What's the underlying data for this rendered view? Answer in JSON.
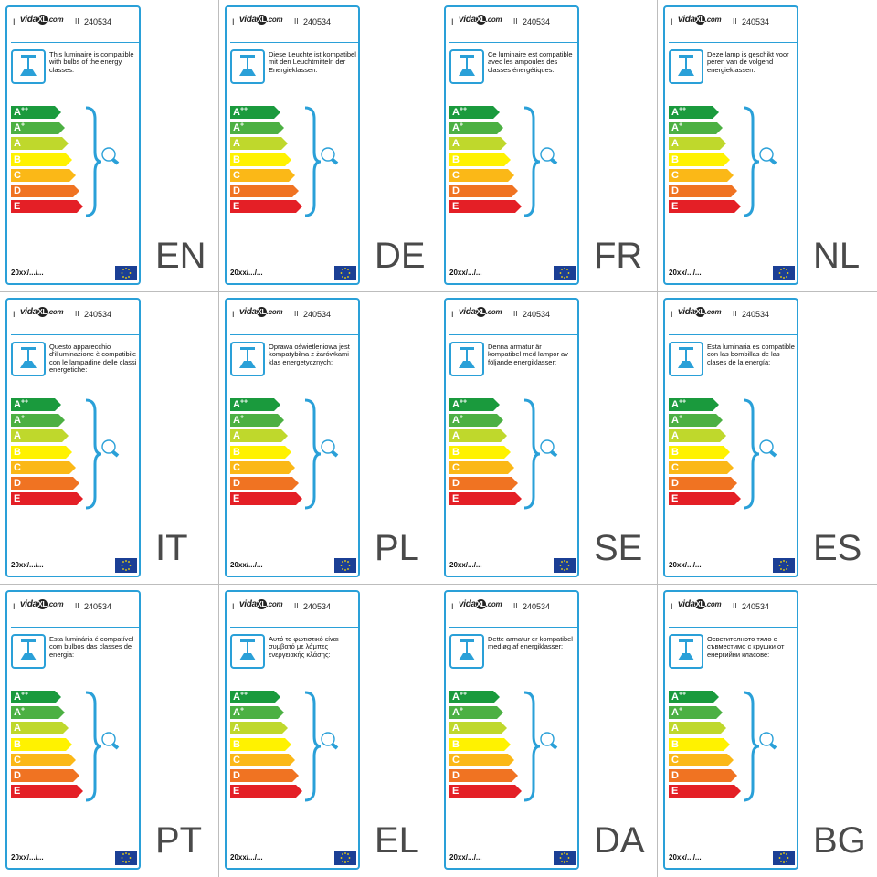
{
  "header": {
    "left_marker": "I",
    "logo_prefix": "vida",
    "logo_x": "XL",
    "logo_suffix": ".com",
    "sep": "II",
    "sku": "240534"
  },
  "energy_classes": [
    {
      "letter": "A",
      "sup": "++",
      "color": "#1a9a3d",
      "width": 48
    },
    {
      "letter": "A",
      "sup": "+",
      "color": "#4cb043",
      "width": 52
    },
    {
      "letter": "A",
      "sup": "",
      "color": "#bfd82c",
      "width": 56
    },
    {
      "letter": "B",
      "sup": "",
      "color": "#fff200",
      "width": 60
    },
    {
      "letter": "C",
      "sup": "",
      "color": "#fbb817",
      "width": 64
    },
    {
      "letter": "D",
      "sup": "",
      "color": "#f07322",
      "width": 68
    },
    {
      "letter": "E",
      "sup": "",
      "color": "#e41f26",
      "width": 72
    }
  ],
  "footer_date": "20xx/.../...",
  "accent_color": "#2aa0d8",
  "icons": {
    "lamp": "ceiling-lamp-icon",
    "bulb": "light-bulb-icon",
    "eu": "eu-flag-icon",
    "brace": "curly-brace-icon"
  },
  "labels": [
    {
      "code": "EN",
      "text": "This luminaire is compatible with bulbs of the energy classes:"
    },
    {
      "code": "DE",
      "text": "Diese Leuchte ist kompatibel mit den Leuchtmitteln der Energieklassen:"
    },
    {
      "code": "FR",
      "text": "Ce luminaire est compatible avec les ampoules des classes énergétiques:"
    },
    {
      "code": "NL",
      "text": "Deze lamp is geschikt voor peren van de volgend energieklassen:"
    },
    {
      "code": "IT",
      "text": "Questo apparecchio d'illuminazione è compatibile con le lampadine delle classi energetiche:"
    },
    {
      "code": "PL",
      "text": "Oprawa oświetleniowa jest kompatybilna z żarówkami klas energetycznych:"
    },
    {
      "code": "SE",
      "text": "Denna armatur är kompatibel med lampor av följande energiklasser:"
    },
    {
      "code": "ES",
      "text": "Esta luminaria es compatible con las bombillas de las clases de la energía:"
    },
    {
      "code": "PT",
      "text": "Esta luminária é compatível com bulbos das classes de energia:"
    },
    {
      "code": "EL",
      "text": "Αυτό το φωτιστικό είναι συμβατό με λάμπες ενεργειακής κλάσης:"
    },
    {
      "code": "DA",
      "text": "Dette armatur er kompatibel medløg af energiklasser:"
    },
    {
      "code": "BG",
      "text": "Осветителното тяло е съвместимо с крушки от енергийни класове:"
    }
  ]
}
